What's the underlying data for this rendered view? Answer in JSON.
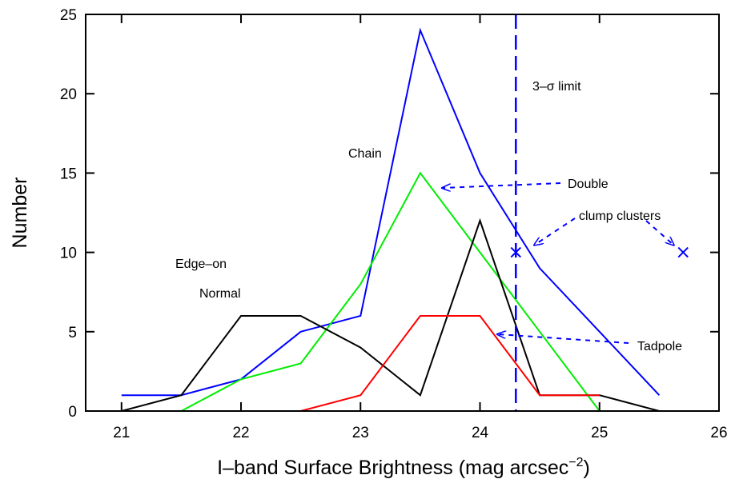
{
  "chart_data": {
    "type": "line",
    "xlabel": "I–band Surface Brightness (mag arcsec",
    "xlabel_sup": "−2",
    "xlabel_close": ")",
    "ylabel": "Number",
    "xlim": [
      20.7,
      26
    ],
    "ylim": [
      0,
      25
    ],
    "xticks": [
      21,
      22,
      23,
      24,
      25,
      26
    ],
    "yticks": [
      0,
      5,
      10,
      15,
      20,
      25
    ],
    "xtick_labels": [
      "21",
      "22",
      "23",
      "24",
      "25",
      "26"
    ],
    "ytick_labels": [
      "0",
      "5",
      "10",
      "15",
      "20",
      "25"
    ],
    "grid": false,
    "series": [
      {
        "name": "Chain",
        "color": "#0000ff",
        "x": [
          21,
          21.5,
          22,
          22.5,
          23,
          23.5,
          24,
          24.5,
          25,
          25.5
        ],
        "y": [
          1,
          1,
          2,
          5,
          6,
          24,
          15,
          9,
          5,
          1
        ]
      },
      {
        "name": "Double",
        "color": "#00ee00",
        "x": [
          21.5,
          22,
          22.5,
          23,
          23.5,
          24,
          24.5,
          25,
          25.5
        ],
        "y": [
          0,
          2,
          3,
          8,
          15,
          10,
          5,
          0,
          0
        ]
      },
      {
        "name": "Edge–on",
        "color": "#000000",
        "x": [
          21,
          21.5,
          22,
          22.5,
          23,
          23.5,
          24,
          24.5,
          25,
          25.5
        ],
        "y": [
          0,
          1,
          6,
          6,
          4,
          1,
          12,
          1,
          1,
          0
        ]
      },
      {
        "name": "Tadpole",
        "color": "#ff0000",
        "x": [
          21,
          22.5,
          23,
          23.5,
          24,
          24.5,
          25
        ],
        "y": [
          0,
          0,
          1,
          6,
          6,
          1,
          1
        ]
      }
    ],
    "markers": [
      {
        "name": "clump clusters",
        "x": 24.3,
        "y": 10,
        "color": "#0000ff"
      },
      {
        "name": "clump clusters",
        "x": 25.7,
        "y": 10,
        "color": "#0000ff"
      }
    ],
    "limit_line": {
      "x": 24.3,
      "label": "3–σ limit",
      "color": "#0000ff"
    },
    "annotations": {
      "chain": "Chain",
      "double": "Double",
      "clump_clusters": "clump clusters",
      "edge_on": "Edge–on",
      "normal": "Normal",
      "tadpole": "Tadpole"
    }
  }
}
